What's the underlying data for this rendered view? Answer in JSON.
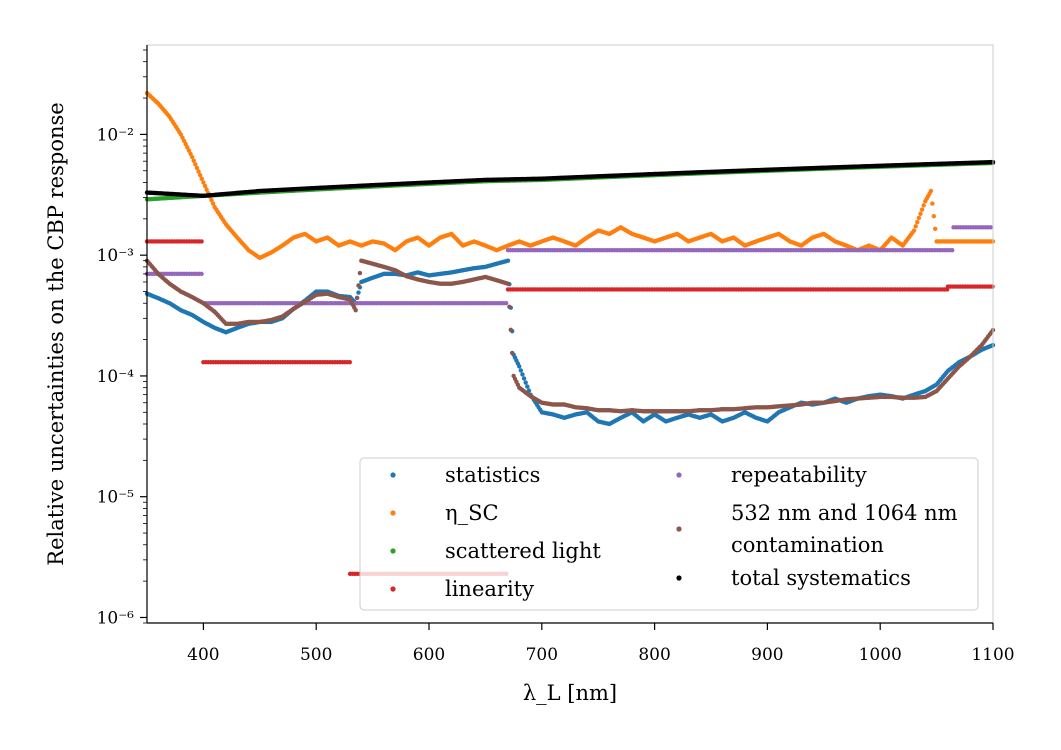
{
  "chart_data": {
    "type": "scatter",
    "title": "",
    "xlabel": "λ_L [nm]",
    "ylabel": "Relative uncertainties on the CBP response",
    "xlim": [
      350,
      1100
    ],
    "ylim": [
      9e-07,
      0.055
    ],
    "yscale": "log",
    "grid": false,
    "legend_position": "lower-right",
    "x_ticks": [
      400,
      500,
      600,
      700,
      800,
      900,
      1000,
      1100
    ],
    "x_tick_labels": [
      "400",
      "500",
      "600",
      "700",
      "800",
      "900",
      "1000",
      "1100"
    ],
    "y_ticks": [
      1e-06,
      1e-05,
      0.0001,
      0.001,
      0.01
    ],
    "y_tick_labels": [
      "10⁻⁶",
      "10⁻⁵",
      "10⁻⁴",
      "10⁻³",
      "10⁻²"
    ],
    "series": [
      {
        "name": "statistics",
        "color": "#1f77b4",
        "x": [
          350,
          360,
          370,
          380,
          390,
          400,
          410,
          420,
          430,
          440,
          450,
          460,
          470,
          480,
          490,
          500,
          510,
          520,
          530,
          535,
          540,
          550,
          560,
          570,
          580,
          590,
          600,
          610,
          620,
          630,
          640,
          650,
          660,
          670,
          675,
          680,
          690,
          700,
          710,
          720,
          730,
          740,
          750,
          760,
          770,
          780,
          790,
          800,
          810,
          820,
          830,
          840,
          850,
          860,
          870,
          880,
          890,
          900,
          910,
          920,
          930,
          940,
          950,
          960,
          970,
          980,
          990,
          1000,
          1010,
          1020,
          1030,
          1040,
          1050,
          1060,
          1070,
          1080,
          1090,
          1100
        ],
        "y": [
          0.00048,
          0.00044,
          0.0004,
          0.00035,
          0.00032,
          0.00028,
          0.00025,
          0.00023,
          0.00025,
          0.00027,
          0.00028,
          0.00028,
          0.0003,
          0.00036,
          0.00042,
          0.0005,
          0.0005,
          0.00046,
          0.00045,
          0.0004,
          0.0006,
          0.00065,
          0.0007,
          0.0007,
          0.00068,
          0.00072,
          0.00068,
          0.0007,
          0.00072,
          0.00075,
          0.00078,
          0.0008,
          0.00085,
          0.0009,
          0.00015,
          0.00012,
          7e-05,
          5e-05,
          4.8e-05,
          4.5e-05,
          4.8e-05,
          5e-05,
          4.2e-05,
          4e-05,
          4.5e-05,
          5e-05,
          4.2e-05,
          4.8e-05,
          4.2e-05,
          4.5e-05,
          4.8e-05,
          4.5e-05,
          4.8e-05,
          4.2e-05,
          4.5e-05,
          5e-05,
          4.5e-05,
          4.2e-05,
          5e-05,
          5.5e-05,
          6e-05,
          5.8e-05,
          6e-05,
          6.5e-05,
          6e-05,
          6.5e-05,
          6.8e-05,
          7e-05,
          6.8e-05,
          6.5e-05,
          7e-05,
          7.5e-05,
          8.5e-05,
          0.00011,
          0.00013,
          0.000145,
          0.000165,
          0.00018
        ]
      },
      {
        "name": "η_SC",
        "color": "#ff7f0e",
        "x": [
          350,
          360,
          370,
          380,
          390,
          400,
          410,
          420,
          430,
          440,
          450,
          460,
          470,
          480,
          490,
          500,
          510,
          520,
          530,
          540,
          550,
          560,
          570,
          580,
          590,
          600,
          610,
          620,
          630,
          640,
          650,
          660,
          670,
          680,
          690,
          700,
          710,
          720,
          730,
          740,
          750,
          760,
          770,
          780,
          790,
          800,
          810,
          820,
          830,
          840,
          850,
          860,
          870,
          880,
          890,
          900,
          910,
          920,
          930,
          940,
          950,
          960,
          970,
          980,
          990,
          1000,
          1010,
          1020,
          1030,
          1040,
          1045,
          1050,
          1060,
          1070,
          1080,
          1090,
          1100
        ],
        "y": [
          0.022,
          0.018,
          0.014,
          0.01,
          0.0065,
          0.004,
          0.0025,
          0.0018,
          0.0014,
          0.0011,
          0.00095,
          0.00105,
          0.0012,
          0.0014,
          0.0015,
          0.0013,
          0.0014,
          0.0012,
          0.0013,
          0.0012,
          0.0013,
          0.00125,
          0.0011,
          0.0013,
          0.0014,
          0.0012,
          0.0014,
          0.0015,
          0.0012,
          0.0013,
          0.0012,
          0.0011,
          0.0012,
          0.0013,
          0.0012,
          0.0013,
          0.0014,
          0.0013,
          0.0012,
          0.0014,
          0.0016,
          0.0015,
          0.0017,
          0.0015,
          0.0014,
          0.0013,
          0.0014,
          0.0015,
          0.0013,
          0.0014,
          0.0015,
          0.0013,
          0.0014,
          0.0012,
          0.0013,
          0.0014,
          0.0015,
          0.0013,
          0.0012,
          0.0014,
          0.0015,
          0.0013,
          0.0012,
          0.0011,
          0.0012,
          0.0011,
          0.0014,
          0.0012,
          0.0016,
          0.0028,
          0.0034,
          0.0013,
          0.0013,
          0.0013,
          0.0013,
          0.0013,
          0.0013
        ]
      },
      {
        "name": "scattered light",
        "color": "#2ca02c",
        "x": [
          350,
          400,
          450,
          500,
          550,
          600,
          650,
          700,
          750,
          800,
          850,
          900,
          950,
          1000,
          1050,
          1100
        ],
        "y": [
          0.0029,
          0.0031,
          0.0033,
          0.0035,
          0.0037,
          0.0039,
          0.0041,
          0.0042,
          0.0044,
          0.0046,
          0.0048,
          0.005,
          0.0052,
          0.0054,
          0.0056,
          0.0058
        ]
      },
      {
        "name": "linearity",
        "color": "#d62728",
        "x": [
          350,
          400,
          400,
          530,
          530,
          670,
          670,
          1060,
          1060,
          1100
        ],
        "y": [
          0.0013,
          0.0013,
          0.00013,
          0.00013,
          2.3e-06,
          2.3e-06,
          0.00052,
          0.00052,
          0.00055,
          0.00055
        ]
      },
      {
        "name": "repeatability",
        "color": "#9467bd",
        "x": [
          350,
          400,
          400,
          670,
          670,
          1065,
          1065,
          1100
        ],
        "y": [
          0.0007,
          0.0007,
          0.0004,
          0.0004,
          0.0011,
          0.0011,
          0.0017,
          0.0017
        ]
      },
      {
        "name": "532 nm and 1064 nm contamination",
        "color": "#8c564b",
        "x": [
          350,
          360,
          370,
          380,
          390,
          400,
          410,
          420,
          430,
          440,
          450,
          460,
          470,
          480,
          490,
          500,
          510,
          520,
          530,
          535,
          540,
          550,
          560,
          570,
          580,
          590,
          600,
          610,
          620,
          630,
          640,
          650,
          660,
          670,
          675,
          680,
          690,
          700,
          710,
          720,
          730,
          740,
          750,
          760,
          770,
          780,
          790,
          800,
          810,
          820,
          830,
          840,
          850,
          860,
          870,
          880,
          890,
          900,
          910,
          920,
          930,
          940,
          950,
          960,
          970,
          980,
          990,
          1000,
          1010,
          1020,
          1030,
          1040,
          1050,
          1060,
          1070,
          1080,
          1090,
          1100
        ],
        "y": [
          0.0009,
          0.0007,
          0.00058,
          0.0005,
          0.00045,
          0.0004,
          0.00034,
          0.00027,
          0.00027,
          0.00028,
          0.00028,
          0.00029,
          0.00031,
          0.00036,
          0.00041,
          0.00047,
          0.00048,
          0.00045,
          0.00043,
          0.00035,
          0.0009,
          0.00085,
          0.0008,
          0.00075,
          0.00067,
          0.00063,
          0.0006,
          0.00058,
          0.00058,
          0.0006,
          0.00063,
          0.00066,
          0.00062,
          0.00058,
          0.0001,
          8e-05,
          6.8e-05,
          6e-05,
          5.8e-05,
          5.8e-05,
          5.5e-05,
          5.4e-05,
          5.2e-05,
          5.2e-05,
          5.1e-05,
          5.2e-05,
          5.1e-05,
          5.1e-05,
          5.1e-05,
          5.1e-05,
          5.1e-05,
          5.2e-05,
          5.2e-05,
          5.3e-05,
          5.3e-05,
          5.4e-05,
          5.5e-05,
          5.5e-05,
          5.6e-05,
          5.7e-05,
          5.8e-05,
          6e-05,
          6e-05,
          6.2e-05,
          6.4e-05,
          6.5e-05,
          6.6e-05,
          6.7e-05,
          6.7e-05,
          6.6e-05,
          6.6e-05,
          6.7e-05,
          7.5e-05,
          9.5e-05,
          0.00012,
          0.000145,
          0.00018,
          0.00024
        ]
      },
      {
        "name": "total systematics",
        "color": "#000000",
        "x": [
          350,
          400,
          450,
          500,
          550,
          600,
          650,
          700,
          750,
          800,
          850,
          900,
          950,
          1000,
          1050,
          1100
        ],
        "y": [
          0.0033,
          0.0031,
          0.0034,
          0.0036,
          0.0038,
          0.004,
          0.0042,
          0.0043,
          0.0045,
          0.0047,
          0.0049,
          0.0051,
          0.0053,
          0.0055,
          0.0057,
          0.0059
        ]
      }
    ],
    "legend": {
      "columns": [
        [
          "statistics",
          "η_SC",
          "scattered light",
          "linearity"
        ],
        [
          "repeatability",
          "532 nm and 1064 nm contamination",
          "total systematics"
        ]
      ],
      "label_lines": {
        "532 nm and 1064 nm contamination": [
          "532 nm and 1064 nm",
          "contamination"
        ]
      }
    }
  }
}
